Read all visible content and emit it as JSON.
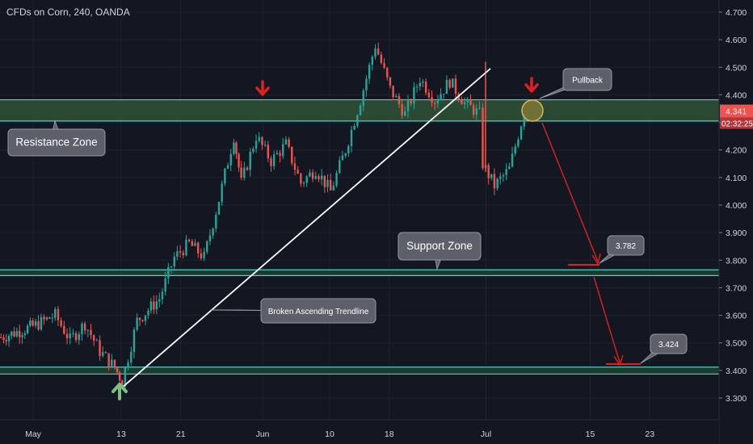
{
  "header": {
    "title": "CFDs on Corn, 240, OANDA"
  },
  "price_axis": {
    "ticks": [
      "4.700",
      "4.600",
      "4.500",
      "4.400",
      "4.300",
      "4.200",
      "4.100",
      "4.000",
      "3.900",
      "3.800",
      "3.700",
      "3.600",
      "3.500",
      "3.400",
      "3.300"
    ],
    "current_price": "4.341",
    "countdown": "02:32:25",
    "current_color": "#ef5350"
  },
  "time_axis": {
    "ticks": [
      "May",
      "13",
      "21",
      "Jun",
      "10",
      "18",
      "Jul",
      "15",
      "23"
    ]
  },
  "annotations": {
    "resistance_label": "Resistance Zone",
    "support_label": "Support Zone",
    "trendline_label": "Broken Ascending Trendline",
    "pullback_label": "Pullback",
    "target1": "3.782",
    "target2": "3.424"
  },
  "colors": {
    "background": "#131722",
    "up_candle": "#26a69a",
    "down_candle": "#ef5350",
    "zone_line": "#4dd0c6",
    "zone_fill": "#2a4a33",
    "arrow_red": "#e02020",
    "arrow_green": "#7fbf7f"
  },
  "chart_data": {
    "type": "candlestick",
    "title": "CFDs on Corn, 240, OANDA",
    "ylim": [
      3.24,
      4.73
    ],
    "resistance_zone": [
      4.305,
      4.382
    ],
    "support_zone": [
      3.744,
      3.765
    ],
    "lower_support_zone": [
      3.387,
      3.412
    ],
    "trendline": {
      "from": {
        "date": "May 13",
        "price": 3.335
      },
      "to": {
        "date": "Jun 30",
        "price": 4.495
      }
    },
    "projection_targets": [
      3.782,
      3.424
    ],
    "close_path": [
      {
        "t": "Apr 29",
        "p": 3.52
      },
      {
        "t": "May 1",
        "p": 3.56
      },
      {
        "t": "May 4",
        "p": 3.6
      },
      {
        "t": "May 6",
        "p": 3.51
      },
      {
        "t": "May 8",
        "p": 3.57
      },
      {
        "t": "May 10",
        "p": 3.47
      },
      {
        "t": "May 12",
        "p": 3.41
      },
      {
        "t": "May 13",
        "p": 3.36
      },
      {
        "t": "May 15",
        "p": 3.58
      },
      {
        "t": "May 18",
        "p": 3.66
      },
      {
        "t": "May 20",
        "p": 3.81
      },
      {
        "t": "May 22",
        "p": 3.86
      },
      {
        "t": "May 24",
        "p": 3.81
      },
      {
        "t": "May 26",
        "p": 4.02
      },
      {
        "t": "May 28",
        "p": 4.25
      },
      {
        "t": "May 29",
        "p": 4.08
      },
      {
        "t": "May 31",
        "p": 4.25
      },
      {
        "t": "Jun 2",
        "p": 4.16
      },
      {
        "t": "Jun 4",
        "p": 4.22
      },
      {
        "t": "Jun 6",
        "p": 4.08
      },
      {
        "t": "Jun 8",
        "p": 4.13
      },
      {
        "t": "Jun 10",
        "p": 4.05
      },
      {
        "t": "Jun 12",
        "p": 4.2
      },
      {
        "t": "Jun 14",
        "p": 4.38
      },
      {
        "t": "Jun 16",
        "p": 4.58
      },
      {
        "t": "Jun 18",
        "p": 4.42
      },
      {
        "t": "Jun 20",
        "p": 4.33
      },
      {
        "t": "Jun 22",
        "p": 4.46
      },
      {
        "t": "Jun 24",
        "p": 4.38
      },
      {
        "t": "Jun 26",
        "p": 4.45
      },
      {
        "t": "Jun 28",
        "p": 4.37
      },
      {
        "t": "Jun 30",
        "p": 4.33
      },
      {
        "t": "Jun 30b",
        "p": 4.15
      },
      {
        "t": "Jul 2",
        "p": 4.07
      },
      {
        "t": "Jul 4",
        "p": 4.13
      },
      {
        "t": "Jul 6",
        "p": 4.34
      }
    ]
  }
}
